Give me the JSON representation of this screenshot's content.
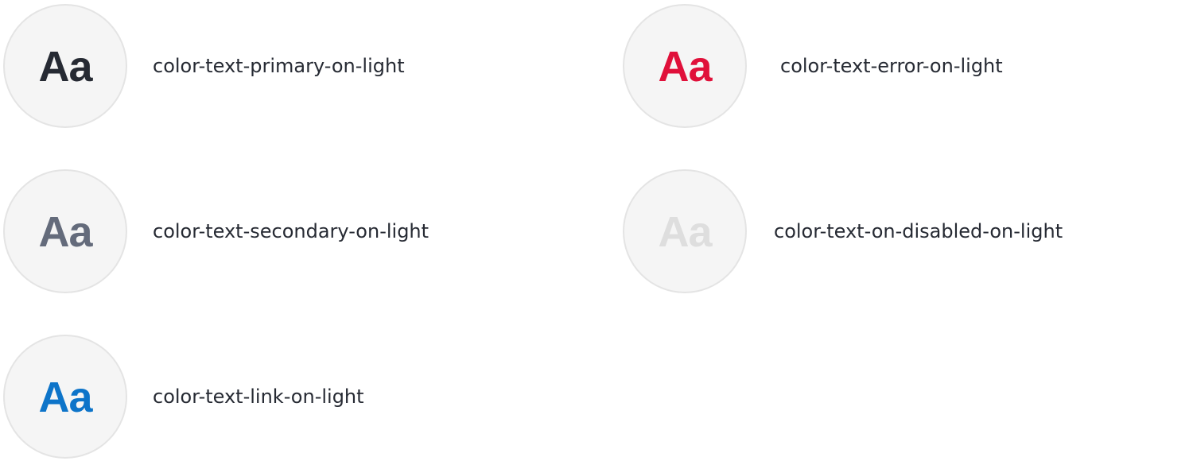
{
  "sample_text": "Aa",
  "swatches": {
    "primary": {
      "label": "color-text-primary-on-light",
      "color": "#262a33"
    },
    "secondary": {
      "label": "color-text-secondary-on-light",
      "color": "#646b7b"
    },
    "link": {
      "label": "color-text-link-on-light",
      "color": "#0d74c9"
    },
    "error": {
      "label": "color-text-error-on-light",
      "color": "#e0103a"
    },
    "disabled": {
      "label": "color-text-on-disabled-on-light",
      "color": "#dedede"
    }
  },
  "colors": {
    "circle_fill": "#f5f5f5",
    "circle_border": "#e4e4e4",
    "label_text": "#262a33",
    "background": "#ffffff"
  }
}
